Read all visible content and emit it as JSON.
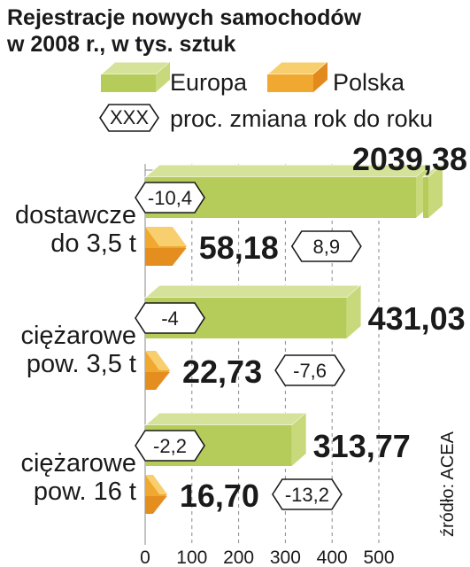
{
  "chart_data": {
    "type": "bar",
    "orientation": "horizontal",
    "title": "Rejestracje nowych samochodów w 2008 r., w tys. sztuk",
    "title_lines": [
      "Rejestracje nowych samochodów",
      "w 2008 r., w tys. sztuk"
    ],
    "legend": [
      {
        "name": "Europa",
        "color": "#b5cc5a"
      },
      {
        "name": "Polska",
        "color": "#f0a830"
      },
      {
        "name": "proc. zmiana rok do roku",
        "symbol": "XXX"
      }
    ],
    "categories": [
      {
        "name": "dostawcze do 3,5 t",
        "lines": [
          "dostawcze",
          "do 3,5 t"
        ]
      },
      {
        "name": "ciężarowe pow. 3,5 t",
        "lines": [
          "ciężarowe",
          "pow. 3,5 t"
        ]
      },
      {
        "name": "ciężarowe pow. 16 t",
        "lines": [
          "ciężarowe",
          "pow. 16 t"
        ]
      }
    ],
    "series": [
      {
        "name": "Europa",
        "values": [
          2039.38,
          431.03,
          313.77
        ],
        "value_labels": [
          "2039,38",
          "431,03",
          "313,77"
        ],
        "change": [
          -10.4,
          -4,
          -2.2
        ],
        "change_labels": [
          "-10,4",
          "-4",
          "-2,2"
        ],
        "axis_break": [
          true,
          false,
          false
        ]
      },
      {
        "name": "Polska",
        "values": [
          58.18,
          22.73,
          16.7
        ],
        "value_labels": [
          "58,18",
          "22,73",
          "16,70"
        ],
        "change": [
          8.9,
          -7.6,
          -13.2
        ],
        "change_labels": [
          "8,9",
          "-7,6",
          "-13,2"
        ]
      }
    ],
    "xlim": [
      0,
      500
    ],
    "xticks": [
      0,
      100,
      200,
      300,
      400,
      500
    ],
    "xtick_labels": [
      "0",
      "100",
      "200",
      "300",
      "400",
      "500"
    ],
    "grid": true,
    "source": "źródło: ACEA"
  },
  "colors": {
    "europa_face": "#b5cc5a",
    "europa_top": "#d4e29a",
    "europa_end": "#c8d97c",
    "polska_face": "#f0a830",
    "polska_top": "#f8cf6e",
    "polska_dark": "#e28a1c",
    "grid": "#8a8a8a"
  }
}
